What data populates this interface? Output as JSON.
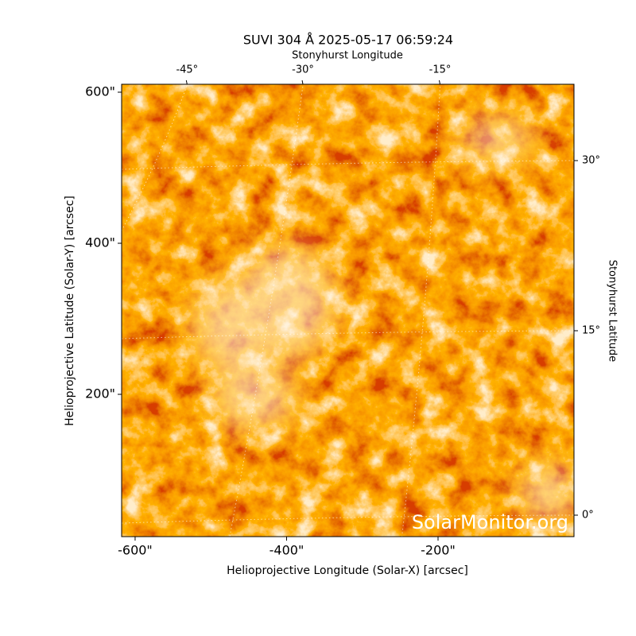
{
  "chart_data": {
    "type": "image",
    "title": "SUVI 304 Å 2025-05-17 06:59:24",
    "watermark": "SolarMonitor.org",
    "xlabel": "Helioprojective Longitude (Solar-X) [arcsec]",
    "ylabel": "Helioprojective Latitude (Solar-Y) [arcsec]",
    "x2label": "Stonyhurst Longitude",
    "y2label": "Stonyhurst Latitude",
    "xlim": [
      -617.8,
      -20.5
    ],
    "ylim": [
      11.6,
      610.5
    ],
    "xticks": [
      {
        "value": -600,
        "label": "-600\""
      },
      {
        "value": -400,
        "label": "-400\""
      },
      {
        "value": -200,
        "label": "-200\""
      }
    ],
    "yticks": [
      {
        "value": 200,
        "label": "200\""
      },
      {
        "value": 400,
        "label": "400\""
      },
      {
        "value": 600,
        "label": "600\""
      }
    ],
    "lon_ticks": [
      {
        "value": -45,
        "label": "-45°"
      },
      {
        "value": -30,
        "label": "-30°"
      },
      {
        "value": -15,
        "label": "-15°"
      }
    ],
    "lat_ticks": [
      {
        "value": 0,
        "label": "0°"
      },
      {
        "value": 15,
        "label": "15°"
      },
      {
        "value": 30,
        "label": "30°"
      }
    ],
    "grid": true
  }
}
